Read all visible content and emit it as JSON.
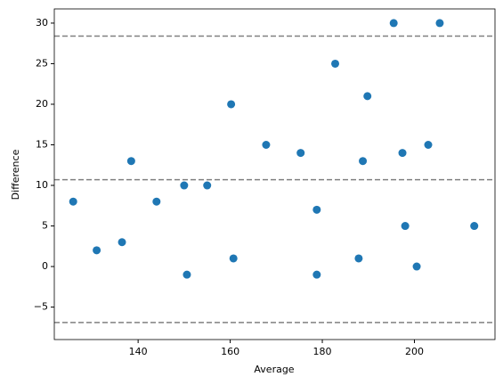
{
  "chart_data": {
    "type": "scatter",
    "x_label": "Average",
    "y_label": "Difference",
    "x": [
      125.9,
      131,
      136.5,
      138.5,
      144,
      150,
      150.6,
      155,
      160.2,
      160.7,
      167.8,
      175.3,
      178.8,
      178.8,
      182.8,
      187.9,
      188.8,
      189.8,
      195.5,
      197.4,
      198,
      200.5,
      203,
      205.5,
      213
    ],
    "values": [
      8,
      2,
      3,
      13,
      8,
      10,
      -1,
      10,
      20,
      1,
      15,
      14,
      7,
      -1,
      25,
      1,
      13,
      21,
      30,
      14,
      5,
      0,
      15,
      30,
      5
    ],
    "color": "#1f77b4",
    "reference_lines": [
      28.4,
      10.7,
      -6.9
    ],
    "reference_line_color": "#808080",
    "xlim": [
      121.8,
      217.5
    ],
    "xticks": [
      140,
      160,
      180,
      200
    ],
    "ylim": [
      -9.0,
      31.75
    ],
    "yticks": [
      {
        "value": -5,
        "label": "−5"
      },
      0,
      5,
      10,
      15,
      20,
      25,
      30
    ]
  }
}
